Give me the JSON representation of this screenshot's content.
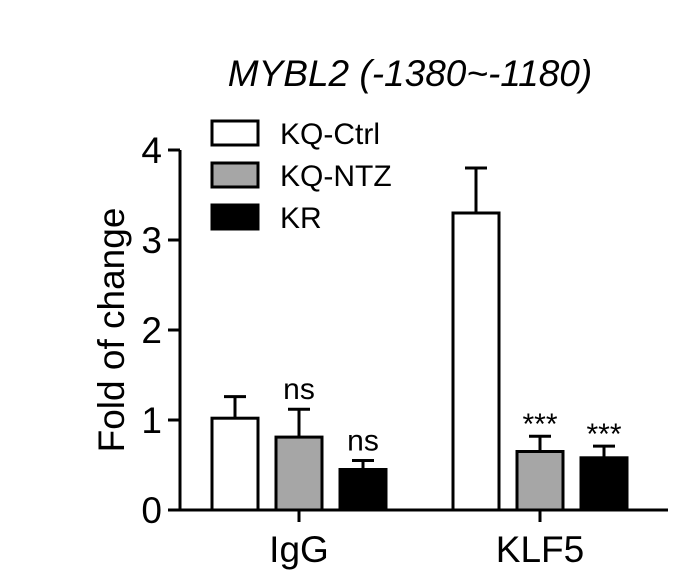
{
  "chart_data": {
    "type": "bar",
    "title": "MYBL2 (-1380~-1180)",
    "xlabel": "",
    "ylabel": "Fold of change",
    "ylim": [
      0,
      4
    ],
    "yticks": [
      "0",
      "1",
      "2",
      "3",
      "4"
    ],
    "categories": [
      "IgG",
      "KLF5"
    ],
    "series": [
      {
        "name": "KQ-Ctrl",
        "color": "#ffffff",
        "values": [
          1.02,
          3.3
        ],
        "errors": [
          0.24,
          0.5
        ]
      },
      {
        "name": "KQ-NTZ",
        "color": "#a6a6a6",
        "values": [
          0.81,
          0.65
        ],
        "errors": [
          0.31,
          0.17
        ]
      },
      {
        "name": "KR",
        "color": "#000000",
        "values": [
          0.45,
          0.58
        ],
        "errors": [
          0.1,
          0.13
        ]
      }
    ],
    "annotations": [
      {
        "series": 1,
        "category": 0,
        "text": "ns"
      },
      {
        "series": 2,
        "category": 0,
        "text": "ns"
      },
      {
        "series": 1,
        "category": 1,
        "text": "***"
      },
      {
        "series": 2,
        "category": 1,
        "text": "***"
      }
    ],
    "legend_position": "top-left",
    "grid": false
  }
}
